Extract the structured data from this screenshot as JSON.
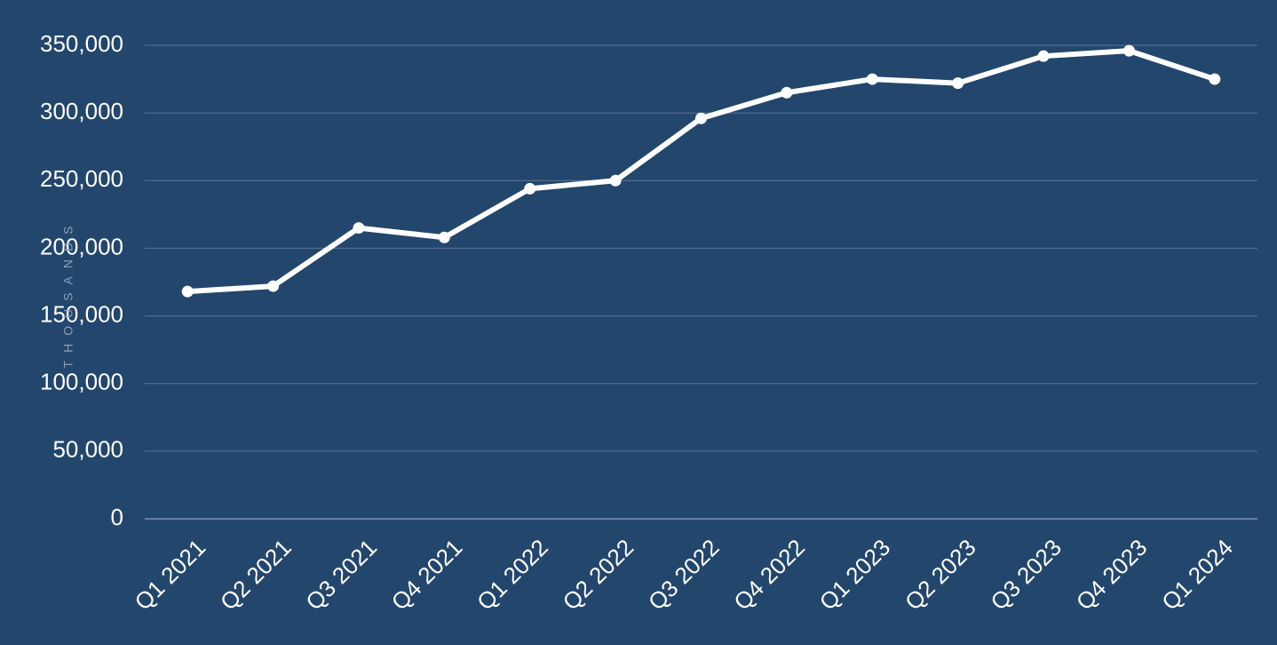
{
  "chart_data": {
    "type": "line",
    "y_label": "THOUSANDS",
    "categories": [
      "Q1 2021",
      "Q2 2021",
      "Q3 2021",
      "Q4 2021",
      "Q1 2022",
      "Q2 2022",
      "Q3 2022",
      "Q4 2022",
      "Q1 2023",
      "Q2 2023",
      "Q3 2023",
      "Q4 2023",
      "Q1 2024"
    ],
    "values": [
      168000,
      172000,
      215000,
      208000,
      244000,
      250000,
      296000,
      315000,
      325000,
      322000,
      342000,
      346000,
      325000
    ],
    "color": "#ffffff",
    "ylim": [
      0,
      350000
    ],
    "yticks": [
      0,
      {
        "value": 50000,
        "label": "50,000"
      },
      {
        "value": 100000,
        "label": "100,000"
      },
      {
        "value": 150000,
        "label": "150,000"
      },
      {
        "value": 200000,
        "label": "200,000"
      },
      {
        "value": 250000,
        "label": "250,000"
      },
      {
        "value": 300000,
        "label": "300,000"
      },
      {
        "value": 350000,
        "label": "350,000"
      }
    ],
    "grid": true
  }
}
